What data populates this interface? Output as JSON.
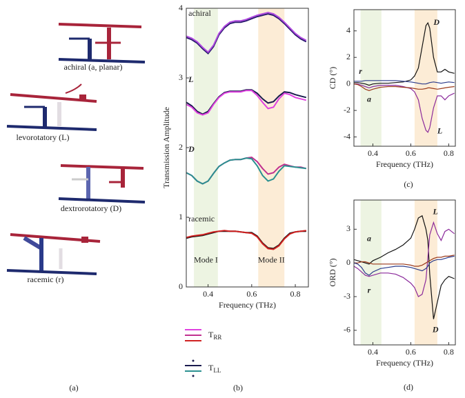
{
  "panel_labels": [
    "(a)",
    "(b)",
    "(c)",
    "(d)"
  ],
  "panel_a": {
    "labels": [
      {
        "text": "achiral (a, planar)",
        "color": "#8b1a1a"
      },
      {
        "text": "levorotatory (L)",
        "color": "#8b2a9b"
      },
      {
        "text": "dextrorotatory (D)",
        "color": "#111111"
      },
      {
        "text": "racemic (r)",
        "color": "#1a2a7a"
      }
    ]
  },
  "chart_data": [
    {
      "type": "line",
      "xlabel": "Frequency (THz)",
      "ylabel": "Transmission Amplitude",
      "xlim": [
        0.3,
        0.86
      ],
      "ylim": [
        0,
        4
      ],
      "xticks": [
        0.4,
        0.6,
        0.8
      ],
      "yticks": [
        0,
        1,
        2,
        3,
        4
      ],
      "bands": [
        {
          "range": [
            0.335,
            0.445
          ],
          "color": "#edf4e2"
        },
        {
          "range": [
            0.63,
            0.75
          ],
          "color": "#fcecd6"
        }
      ],
      "x": [
        0.3,
        0.325,
        0.35,
        0.375,
        0.4,
        0.425,
        0.45,
        0.475,
        0.5,
        0.525,
        0.55,
        0.575,
        0.6,
        0.625,
        0.65,
        0.675,
        0.7,
        0.725,
        0.75,
        0.775,
        0.8,
        0.825,
        0.85
      ],
      "series": [
        {
          "color": "#2a1a6e",
          "values": [
            3.58,
            3.55,
            3.5,
            3.42,
            3.35,
            3.45,
            3.62,
            3.72,
            3.78,
            3.8,
            3.8,
            3.82,
            3.85,
            3.88,
            3.9,
            3.92,
            3.9,
            3.85,
            3.78,
            3.7,
            3.62,
            3.56,
            3.52
          ]
        },
        {
          "color": "#b04ae0",
          "values": [
            3.6,
            3.57,
            3.52,
            3.44,
            3.37,
            3.47,
            3.64,
            3.74,
            3.8,
            3.82,
            3.82,
            3.84,
            3.87,
            3.9,
            3.92,
            3.94,
            3.92,
            3.87,
            3.8,
            3.72,
            3.64,
            3.58,
            3.54
          ]
        },
        {
          "color": "#1a1a4e",
          "values": [
            2.65,
            2.6,
            2.52,
            2.48,
            2.52,
            2.63,
            2.73,
            2.79,
            2.81,
            2.81,
            2.81,
            2.83,
            2.83,
            2.78,
            2.7,
            2.64,
            2.66,
            2.74,
            2.8,
            2.79,
            2.76,
            2.74,
            2.72
          ]
        },
        {
          "color": "#e040e0",
          "values": [
            2.62,
            2.58,
            2.5,
            2.47,
            2.5,
            2.62,
            2.72,
            2.78,
            2.8,
            2.8,
            2.8,
            2.82,
            2.82,
            2.75,
            2.65,
            2.56,
            2.58,
            2.7,
            2.78,
            2.76,
            2.72,
            2.7,
            2.68
          ]
        },
        {
          "color": "#c0308f",
          "values": [
            1.64,
            1.6,
            1.52,
            1.48,
            1.52,
            1.63,
            1.73,
            1.78,
            1.82,
            1.83,
            1.83,
            1.85,
            1.86,
            1.8,
            1.7,
            1.62,
            1.64,
            1.72,
            1.76,
            1.74,
            1.72,
            1.72,
            1.7
          ]
        },
        {
          "color": "#2a9090",
          "values": [
            1.64,
            1.6,
            1.52,
            1.48,
            1.52,
            1.63,
            1.73,
            1.78,
            1.82,
            1.83,
            1.83,
            1.85,
            1.84,
            1.74,
            1.6,
            1.52,
            1.55,
            1.66,
            1.74,
            1.73,
            1.72,
            1.71,
            1.7
          ]
        },
        {
          "color": "#111111",
          "values": [
            0.7,
            0.72,
            0.73,
            0.74,
            0.76,
            0.78,
            0.8,
            0.8,
            0.8,
            0.8,
            0.79,
            0.78,
            0.78,
            0.73,
            0.63,
            0.56,
            0.55,
            0.6,
            0.7,
            0.77,
            0.79,
            0.8,
            0.8
          ]
        },
        {
          "color": "#d02020",
          "values": [
            0.71,
            0.73,
            0.74,
            0.75,
            0.77,
            0.79,
            0.8,
            0.81,
            0.8,
            0.8,
            0.79,
            0.78,
            0.77,
            0.72,
            0.62,
            0.55,
            0.54,
            0.59,
            0.69,
            0.76,
            0.79,
            0.8,
            0.81
          ]
        }
      ],
      "annotations": [
        {
          "text": "achiral",
          "color": "#8b1a1a"
        },
        {
          "text": "L",
          "color": "#8b2a9b"
        },
        {
          "text": "D",
          "color": "#111111"
        },
        {
          "text": "racemic",
          "color": "#1a2a7a"
        },
        {
          "text": "Mode I",
          "color": "#333333"
        },
        {
          "text": "Mode II",
          "color": "#333333"
        }
      ],
      "legend": [
        {
          "text": "T",
          "subscript": "RR",
          "colors": [
            "#e040e0",
            "#c0308f",
            "#d02020"
          ]
        },
        {
          "text": "T",
          "subscript": "LL",
          "colors": [
            "#1a1a4e",
            "#2a9090"
          ]
        }
      ]
    },
    {
      "type": "line",
      "xlabel": "Frequency (THz)",
      "ylabel": "CD (°)",
      "xlim": [
        0.3,
        0.835
      ],
      "ylim": [
        -4.7,
        5.6
      ],
      "xticks": [
        0.4,
        0.6,
        0.8
      ],
      "yticks": [
        -4,
        -2,
        0,
        2,
        4
      ],
      "bands": [
        {
          "range": [
            0.335,
            0.445
          ],
          "color": "#edf4e2"
        },
        {
          "range": [
            0.62,
            0.74
          ],
          "color": "#fcecd6"
        }
      ],
      "x": [
        0.3,
        0.32,
        0.34,
        0.36,
        0.38,
        0.4,
        0.44,
        0.48,
        0.52,
        0.56,
        0.6,
        0.62,
        0.64,
        0.66,
        0.68,
        0.69,
        0.7,
        0.72,
        0.74,
        0.76,
        0.78,
        0.8,
        0.83
      ],
      "series": [
        {
          "color": "#111111",
          "values": [
            0.1,
            0.1,
            0.05,
            0,
            -0.1,
            0,
            0.05,
            0.05,
            0.1,
            0.15,
            0.3,
            0.6,
            1.2,
            2.8,
            4.4,
            4.6,
            4.2,
            2,
            0.9,
            0.9,
            1.1,
            0.9,
            0.8
          ]
        },
        {
          "color": "#8b2a9b",
          "values": [
            0,
            0,
            -0.1,
            -0.2,
            -0.3,
            -0.2,
            -0.1,
            -0.1,
            -0.1,
            -0.2,
            -0.35,
            -0.6,
            -1.2,
            -2.6,
            -3.5,
            -3.65,
            -3.3,
            -1.8,
            -0.9,
            -0.9,
            -1.2,
            -0.9,
            -0.7
          ]
        },
        {
          "color": "#9b3a1a",
          "values": [
            0,
            -0.05,
            -0.2,
            -0.4,
            -0.5,
            -0.4,
            -0.25,
            -0.2,
            -0.2,
            -0.25,
            -0.3,
            -0.35,
            -0.4,
            -0.4,
            -0.35,
            -0.3,
            -0.3,
            -0.35,
            -0.4,
            -0.35,
            -0.3,
            -0.25,
            -0.2
          ]
        },
        {
          "color": "#2a3a8a",
          "values": [
            0.2,
            0.2,
            0.2,
            0.25,
            0.25,
            0.25,
            0.25,
            0.25,
            0.25,
            0.2,
            0.15,
            0.1,
            0.05,
            0,
            0,
            0.05,
            0.1,
            0.15,
            0.1,
            0.05,
            0.1,
            0.15,
            0.1
          ]
        }
      ],
      "annotations": [
        {
          "text": "D",
          "color": "#111111"
        },
        {
          "text": "L",
          "color": "#8b2a9b"
        },
        {
          "text": "r",
          "color": "#1a2a7a"
        },
        {
          "text": "a",
          "color": "#8b1a1a"
        }
      ]
    },
    {
      "type": "line",
      "xlabel": "Frequency (THz)",
      "ylabel": "ORD (°)",
      "xlim": [
        0.3,
        0.835
      ],
      "ylim": [
        -7.3,
        5.6
      ],
      "xticks": [
        0.4,
        0.6,
        0.8
      ],
      "yticks": [
        -6,
        -3,
        0,
        3
      ],
      "bands": [
        {
          "range": [
            0.335,
            0.445
          ],
          "color": "#edf4e2"
        },
        {
          "range": [
            0.62,
            0.74
          ],
          "color": "#fcecd6"
        }
      ],
      "x": [
        0.3,
        0.32,
        0.34,
        0.36,
        0.38,
        0.4,
        0.44,
        0.48,
        0.52,
        0.56,
        0.6,
        0.62,
        0.64,
        0.66,
        0.68,
        0.69,
        0.7,
        0.72,
        0.74,
        0.76,
        0.78,
        0.8,
        0.83
      ],
      "series": [
        {
          "color": "#111111",
          "values": [
            0.3,
            0.2,
            0.1,
            0,
            -0.1,
            0.2,
            0.5,
            0.9,
            1.2,
            1.6,
            2.2,
            3,
            4,
            4.2,
            3,
            2,
            -1,
            -5,
            -3.5,
            -2,
            -1.5,
            -1.2,
            -1.4
          ]
        },
        {
          "color": "#8b2a9b",
          "values": [
            -0.3,
            -0.5,
            -0.8,
            -1.1,
            -1.2,
            -1.1,
            -0.9,
            -0.9,
            -1,
            -1.3,
            -1.8,
            -2.2,
            -3,
            -2.8,
            -1.5,
            0.5,
            2.5,
            3.6,
            2.6,
            2,
            2.8,
            3,
            2.6
          ]
        },
        {
          "color": "#9b3a1a",
          "values": [
            0,
            0,
            0.1,
            0.1,
            0,
            -0.1,
            -0.1,
            -0.1,
            -0.1,
            -0.1,
            -0.2,
            -0.3,
            -0.3,
            -0.2,
            0,
            0.1,
            0.2,
            0.4,
            0.5,
            0.5,
            0.6,
            0.6,
            0.7
          ]
        },
        {
          "color": "#2a3a8a",
          "values": [
            0,
            -0.1,
            -0.4,
            -0.9,
            -1.1,
            -0.8,
            -0.5,
            -0.4,
            -0.3,
            -0.3,
            -0.4,
            -0.5,
            -0.6,
            -0.7,
            -0.5,
            -0.3,
            0,
            0.2,
            0.3,
            0.3,
            0.4,
            0.5,
            0.6
          ]
        }
      ],
      "annotations": [
        {
          "text": "L",
          "color": "#8b2a9b"
        },
        {
          "text": "a",
          "color": "#8b1a1a"
        },
        {
          "text": "r",
          "color": "#1a2a7a"
        },
        {
          "text": "D",
          "color": "#111111"
        }
      ]
    }
  ]
}
